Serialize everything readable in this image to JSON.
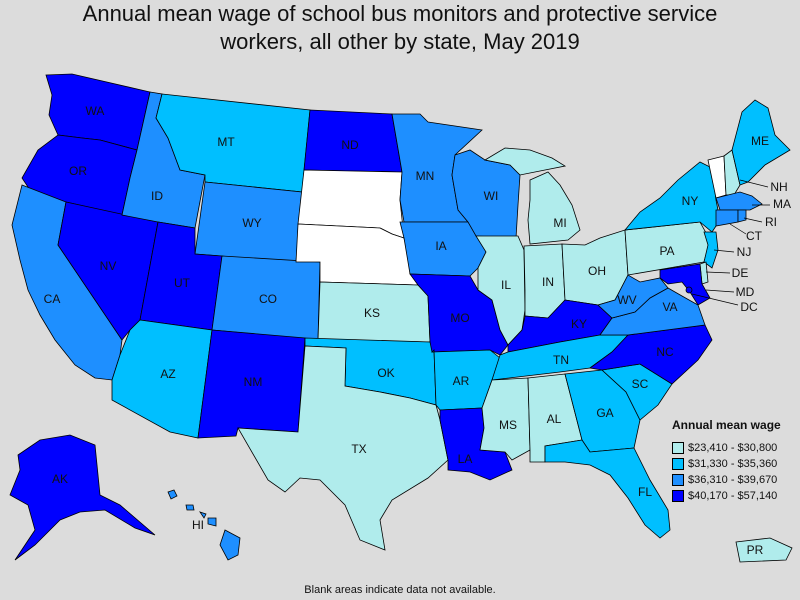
{
  "title_line1": "Annual mean wage of school bus monitors and protective service",
  "title_line2": "workers, all other by state, May 2019",
  "colors": {
    "c1": "#b0ecec",
    "c2": "#00bfff",
    "c3": "#1e8fff",
    "c4": "#0000ff",
    "blank": "#ffffff"
  },
  "legend": {
    "title": "Annual mean wage",
    "items": [
      {
        "label": "$23,410 - $30,800",
        "color": "#b0ecec"
      },
      {
        "label": "$31,330 - $35,360",
        "color": "#00bfff"
      },
      {
        "label": "$36,310 - $39,670",
        "color": "#1e8fff"
      },
      {
        "label": "$40,170 - $57,140",
        "color": "#0000ff"
      }
    ]
  },
  "note": "Blank areas indicate data not available.",
  "states": {
    "WA": {
      "label": "WA",
      "cls": "c4"
    },
    "OR": {
      "label": "OR",
      "cls": "c4"
    },
    "CA": {
      "label": "CA",
      "cls": "c3"
    },
    "NV": {
      "label": "NV",
      "cls": "c4"
    },
    "ID": {
      "label": "ID",
      "cls": "c3"
    },
    "MT": {
      "label": "MT",
      "cls": "c2"
    },
    "WY": {
      "label": "WY",
      "cls": "c3"
    },
    "UT": {
      "label": "UT",
      "cls": "c4"
    },
    "AZ": {
      "label": "AZ",
      "cls": "c2"
    },
    "CO": {
      "label": "CO",
      "cls": "c3"
    },
    "NM": {
      "label": "NM",
      "cls": "c4"
    },
    "ND": {
      "label": "ND",
      "cls": "c4"
    },
    "SD": {
      "label": "",
      "cls": "blank"
    },
    "NE": {
      "label": "",
      "cls": "blank"
    },
    "KS": {
      "label": "KS",
      "cls": "c1"
    },
    "OK": {
      "label": "OK",
      "cls": "c2"
    },
    "TX": {
      "label": "TX",
      "cls": "c1"
    },
    "MN": {
      "label": "MN",
      "cls": "c3"
    },
    "IA": {
      "label": "IA",
      "cls": "c3"
    },
    "MO": {
      "label": "MO",
      "cls": "c4"
    },
    "AR": {
      "label": "AR",
      "cls": "c2"
    },
    "LA": {
      "label": "LA",
      "cls": "c4"
    },
    "WI": {
      "label": "WI",
      "cls": "c3"
    },
    "IL": {
      "label": "IL",
      "cls": "c1"
    },
    "MI": {
      "label": "MI",
      "cls": "c1"
    },
    "IN": {
      "label": "IN",
      "cls": "c1"
    },
    "OH": {
      "label": "OH",
      "cls": "c1"
    },
    "KY": {
      "label": "KY",
      "cls": "c4"
    },
    "TN": {
      "label": "TN",
      "cls": "c2"
    },
    "MS": {
      "label": "MS",
      "cls": "c1"
    },
    "AL": {
      "label": "AL",
      "cls": "c1"
    },
    "GA": {
      "label": "GA",
      "cls": "c2"
    },
    "FL": {
      "label": "FL",
      "cls": "c2"
    },
    "SC": {
      "label": "SC",
      "cls": "c2"
    },
    "NC": {
      "label": "NC",
      "cls": "c4"
    },
    "VA": {
      "label": "VA",
      "cls": "c3"
    },
    "WV": {
      "label": "WV",
      "cls": "c3"
    },
    "PA": {
      "label": "PA",
      "cls": "c1"
    },
    "NY": {
      "label": "NY",
      "cls": "c2"
    },
    "VT": {
      "label": "",
      "cls": "blank"
    },
    "NH": {
      "label": "NH",
      "cls": "c1"
    },
    "ME": {
      "label": "ME",
      "cls": "c2"
    },
    "MA": {
      "label": "MA",
      "cls": "c3"
    },
    "RI": {
      "label": "RI",
      "cls": "c3"
    },
    "CT": {
      "label": "CT",
      "cls": "c3"
    },
    "NJ": {
      "label": "NJ",
      "cls": "c2"
    },
    "DE": {
      "label": "DE",
      "cls": "c1"
    },
    "MD": {
      "label": "MD",
      "cls": "c4"
    },
    "DC": {
      "label": "DC",
      "cls": "c4"
    },
    "AK": {
      "label": "AK",
      "cls": "c4"
    },
    "HI": {
      "label": "HI",
      "cls": "c3"
    },
    "PR": {
      "label": "PR",
      "cls": "c1"
    }
  }
}
